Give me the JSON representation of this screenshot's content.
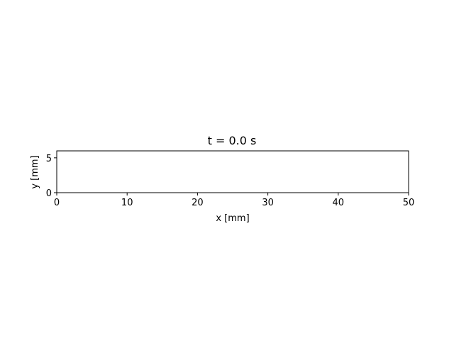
{
  "chart_data": {
    "type": "line",
    "title": "t = 0.0 s",
    "xlabel": "x [mm]",
    "ylabel": "y [mm]",
    "xlim": [
      0,
      50
    ],
    "ylim": [
      0,
      6
    ],
    "x_ticks": [
      0,
      10,
      20,
      30,
      40,
      50
    ],
    "x_tick_labels": [
      "0",
      "10",
      "20",
      "30",
      "40",
      "50"
    ],
    "y_ticks": [
      0,
      5
    ],
    "y_tick_labels": [
      "0",
      "5"
    ],
    "grid": false,
    "legend": "none",
    "series": []
  },
  "colors": {
    "axes": "#000000",
    "background": "#ffffff"
  }
}
